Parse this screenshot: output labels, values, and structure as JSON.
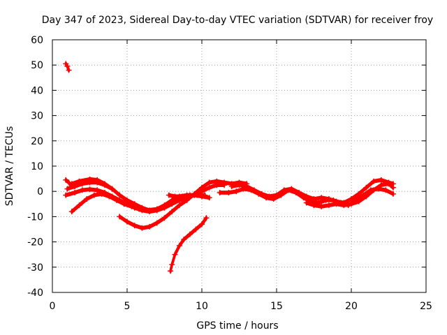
{
  "chart_data": {
    "type": "scatter",
    "title": "Day 347 of 2023, Sidereal Day-to-day VTEC variation (SDTVAR) for receiver froy",
    "xlabel": "GPS time / hours",
    "ylabel": "SDTVAR / TECUs",
    "xlim": [
      0,
      25
    ],
    "ylim": [
      -40,
      60
    ],
    "xticks": [
      0,
      5,
      10,
      15,
      20,
      25
    ],
    "yticks": [
      -40,
      -30,
      -20,
      -10,
      0,
      10,
      20,
      30,
      40,
      50,
      60
    ],
    "grid": true,
    "marker_color": "#ff0000",
    "series": [
      {
        "name": "track-1",
        "x": [
          0.9,
          1.0,
          1.1
        ],
        "y": [
          50.5,
          49.5,
          48.0
        ]
      },
      {
        "name": "track-2",
        "x": [
          0.9,
          1.1,
          1.3
        ],
        "y": [
          4.5,
          3.5,
          2.0
        ]
      },
      {
        "name": "track-3",
        "x": [
          0.9,
          1.5,
          2.0,
          2.5,
          3.0,
          3.5,
          4.0,
          4.5,
          5.0,
          5.5,
          6.0,
          6.5,
          7.0,
          7.5,
          8.0,
          8.5,
          9.0,
          9.5,
          10.0,
          10.5,
          11.0,
          11.5
        ],
        "y": [
          -1.5,
          -0.5,
          0.5,
          0.8,
          0.5,
          -0.5,
          -2.0,
          -3.5,
          -5.0,
          -6.5,
          -7.5,
          -8.0,
          -7.5,
          -6.5,
          -5.0,
          -3.5,
          -2.5,
          -1.5,
          0.0,
          1.5,
          2.5,
          2.5
        ]
      },
      {
        "name": "track-4",
        "x": [
          1.3,
          1.8,
          2.5,
          3.0,
          3.5,
          4.0,
          4.5,
          5.0,
          5.5,
          6.0,
          6.5
        ],
        "y": [
          3.0,
          4.0,
          4.8,
          4.5,
          3.0,
          1.0,
          -1.5,
          -3.5,
          -5.0,
          -6.5,
          -7.5
        ]
      },
      {
        "name": "track-5",
        "x": [
          1.3,
          1.8,
          2.3,
          2.8,
          3.3,
          3.8,
          4.3,
          4.8,
          5.3,
          5.8,
          6.3,
          7.0,
          7.5,
          8.0,
          8.5,
          9.0,
          9.5,
          10.0,
          10.5
        ],
        "y": [
          -8.0,
          -5.5,
          -3.0,
          -1.5,
          -1.0,
          -2.0,
          -3.5,
          -5.0,
          -6.0,
          -7.0,
          -7.5,
          -7.0,
          -5.5,
          -3.5,
          -2.0,
          -1.5,
          -1.5,
          -2.0,
          -2.5
        ]
      },
      {
        "name": "track-6",
        "x": [
          1.0,
          1.5,
          2.0,
          2.5,
          3.0,
          3.5,
          4.0
        ],
        "y": [
          1.0,
          2.0,
          3.0,
          3.5,
          3.5,
          2.5,
          1.0
        ]
      },
      {
        "name": "track-7",
        "x": [
          4.5,
          5.0,
          5.5,
          6.0,
          6.5,
          7.0,
          7.5,
          8.0,
          8.5,
          9.0,
          9.5,
          10.0,
          10.5,
          11.0,
          11.5,
          12.0,
          12.5,
          13.0
        ],
        "y": [
          -10.0,
          -12.0,
          -13.5,
          -14.5,
          -14.0,
          -12.5,
          -10.5,
          -8.0,
          -5.5,
          -3.5,
          -1.0,
          1.5,
          3.5,
          4.0,
          3.5,
          3.0,
          3.5,
          3.0
        ]
      },
      {
        "name": "track-8",
        "x": [
          7.9,
          8.0,
          8.2,
          8.5,
          8.8,
          9.2,
          9.6,
          10.0,
          10.3
        ],
        "y": [
          -31.5,
          -29.0,
          -25.0,
          -21.5,
          -19.0,
          -17.0,
          -15.0,
          -13.0,
          -10.5
        ]
      },
      {
        "name": "track-9",
        "x": [
          7.8,
          8.2,
          8.7,
          9.2,
          9.7,
          10.2
        ],
        "y": [
          -1.5,
          -2.0,
          -2.0,
          -1.5,
          -1.5,
          -1.5
        ]
      },
      {
        "name": "track-10",
        "x": [
          11.2,
          11.8,
          12.3,
          12.8,
          13.3,
          13.8,
          14.3,
          14.8,
          15.3,
          15.8,
          16.3,
          16.8,
          17.3,
          17.8,
          18.3,
          18.8,
          19.3,
          19.8,
          20.3,
          20.8,
          21.3,
          21.8,
          22.3,
          22.8
        ],
        "y": [
          -0.5,
          -0.5,
          0.0,
          1.0,
          0.5,
          -1.0,
          -2.5,
          -3.0,
          -1.5,
          0.5,
          -0.5,
          -2.5,
          -4.0,
          -4.5,
          -3.5,
          -3.5,
          -4.5,
          -5.5,
          -3.5,
          -1.5,
          0.5,
          1.0,
          0.5,
          -1.0
        ]
      },
      {
        "name": "track-11",
        "x": [
          12.0,
          12.5,
          13.0,
          13.5,
          14.0,
          14.5,
          15.0,
          15.5,
          16.0,
          16.5,
          17.0,
          17.5,
          18.0,
          18.5,
          19.0,
          19.5,
          20.0,
          20.5,
          21.0,
          21.5,
          22.0,
          22.5,
          22.8
        ],
        "y": [
          2.0,
          2.5,
          2.0,
          0.5,
          -1.0,
          -2.0,
          -1.5,
          0.5,
          1.0,
          -0.5,
          -2.0,
          -3.0,
          -2.5,
          -3.0,
          -4.0,
          -4.5,
          -3.0,
          -1.0,
          1.5,
          4.0,
          4.5,
          3.5,
          3.0
        ]
      },
      {
        "name": "track-12",
        "x": [
          17.0,
          17.5,
          18.0,
          18.5,
          19.0,
          19.5,
          20.0,
          20.5,
          21.0,
          21.5,
          22.0,
          22.5,
          22.8
        ],
        "y": [
          -4.5,
          -5.5,
          -6.0,
          -5.5,
          -5.0,
          -5.5,
          -5.0,
          -4.0,
          -2.0,
          0.5,
          2.5,
          3.0,
          1.5
        ]
      }
    ]
  }
}
